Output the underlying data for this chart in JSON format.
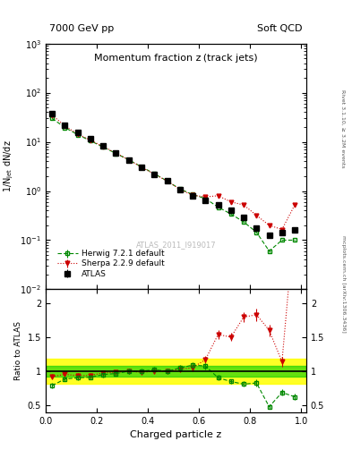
{
  "title": "Momentum fraction z (track jets)",
  "top_left_label": "7000 GeV pp",
  "top_right_label": "Soft QCD",
  "ylabel_main": "1/N$_\\mathregular{jet}$ dN/dz",
  "ylabel_ratio": "Ratio to ATLAS",
  "xlabel": "Charged particle z",
  "right_label1": "Rivet 3.1.10, ≥ 3.2M events",
  "right_label2": "mcplots.cern.ch [arXiv:1306.3436]",
  "watermark": "ATLAS_2011_I919017",
  "ylim_main": [
    0.01,
    1000
  ],
  "ylim_ratio": [
    0.4,
    2.2
  ],
  "xlim": [
    0.0,
    1.02
  ],
  "atlas_x": [
    0.025,
    0.075,
    0.125,
    0.175,
    0.225,
    0.275,
    0.325,
    0.375,
    0.425,
    0.475,
    0.525,
    0.575,
    0.625,
    0.675,
    0.725,
    0.775,
    0.825,
    0.875,
    0.925,
    0.975
  ],
  "atlas_y": [
    38.0,
    22.0,
    15.5,
    11.5,
    8.2,
    6.0,
    4.3,
    3.1,
    2.2,
    1.6,
    1.05,
    0.78,
    0.65,
    0.52,
    0.4,
    0.29,
    0.175,
    0.125,
    0.145,
    0.16
  ],
  "atlas_yerr": [
    1.5,
    0.8,
    0.6,
    0.4,
    0.3,
    0.2,
    0.15,
    0.1,
    0.08,
    0.06,
    0.04,
    0.03,
    0.025,
    0.02,
    0.015,
    0.012,
    0.008,
    0.006,
    0.008,
    0.01
  ],
  "herwig_x": [
    0.025,
    0.075,
    0.125,
    0.175,
    0.225,
    0.275,
    0.325,
    0.375,
    0.425,
    0.475,
    0.525,
    0.575,
    0.625,
    0.675,
    0.725,
    0.775,
    0.825,
    0.875,
    0.925,
    0.975
  ],
  "herwig_y": [
    30.0,
    19.5,
    14.0,
    10.5,
    7.8,
    5.8,
    4.3,
    3.1,
    2.25,
    1.6,
    1.1,
    0.85,
    0.7,
    0.47,
    0.34,
    0.235,
    0.145,
    0.06,
    0.1,
    0.1
  ],
  "herwig_yerr": [
    0.5,
    0.3,
    0.2,
    0.15,
    0.1,
    0.08,
    0.06,
    0.04,
    0.03,
    0.025,
    0.02,
    0.015,
    0.012,
    0.01,
    0.008,
    0.006,
    0.005,
    0.003,
    0.004,
    0.004
  ],
  "sherpa_x": [
    0.025,
    0.075,
    0.125,
    0.175,
    0.225,
    0.275,
    0.325,
    0.375,
    0.425,
    0.475,
    0.525,
    0.575,
    0.625,
    0.675,
    0.725,
    0.775,
    0.825,
    0.875,
    0.925,
    0.975
  ],
  "sherpa_y": [
    35.0,
    21.0,
    14.5,
    10.8,
    8.0,
    5.9,
    4.3,
    3.05,
    2.2,
    1.6,
    1.08,
    0.82,
    0.76,
    0.8,
    0.6,
    0.52,
    0.32,
    0.2,
    0.165,
    0.52
  ],
  "sherpa_yerr": [
    0.5,
    0.3,
    0.2,
    0.15,
    0.1,
    0.08,
    0.06,
    0.04,
    0.03,
    0.025,
    0.02,
    0.015,
    0.012,
    0.01,
    0.008,
    0.006,
    0.005,
    0.004,
    0.005,
    0.01
  ],
  "atlas_color": "#000000",
  "herwig_color": "#008800",
  "sherpa_color": "#cc0000",
  "band_yellow": [
    0.82,
    1.18
  ],
  "band_green": [
    0.92,
    1.08
  ]
}
